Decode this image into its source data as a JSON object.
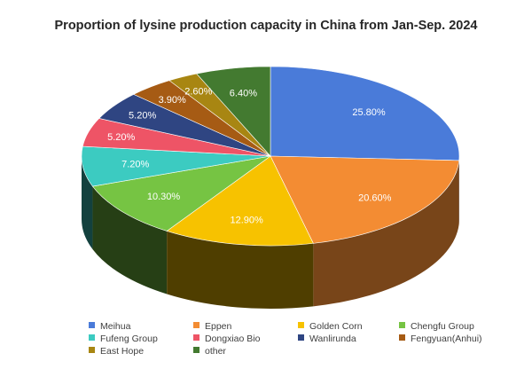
{
  "chart_data": {
    "type": "pie",
    "title": "Proportion of lysine production capacity in China from Jan-Sep. 2024",
    "categories": [
      "Meihua",
      "Eppen",
      "Golden Corn",
      "Chengfu Group",
      "Fufeng Group",
      "Dongxiao Bio",
      "Wanlirunda",
      "Fengyuan(Anhui)",
      "East Hope",
      "other"
    ],
    "values": [
      25.8,
      20.6,
      12.9,
      10.3,
      7.2,
      5.2,
      5.2,
      3.9,
      2.6,
      6.4
    ],
    "labels": [
      "25.80%",
      "20.60%",
      "12.90%",
      "10.30%",
      "7.20%",
      "5.20%",
      "5.20%",
      "3.90%",
      "2.60%",
      "6.40%"
    ],
    "colors": [
      "#4A7BD9",
      "#F38C33",
      "#F7C200",
      "#76C443",
      "#3CCBC1",
      "#EE5466",
      "#2F4582",
      "#A65B14",
      "#A88612",
      "#437A30"
    ],
    "style": "3d-pie",
    "legend_position": "bottom"
  }
}
